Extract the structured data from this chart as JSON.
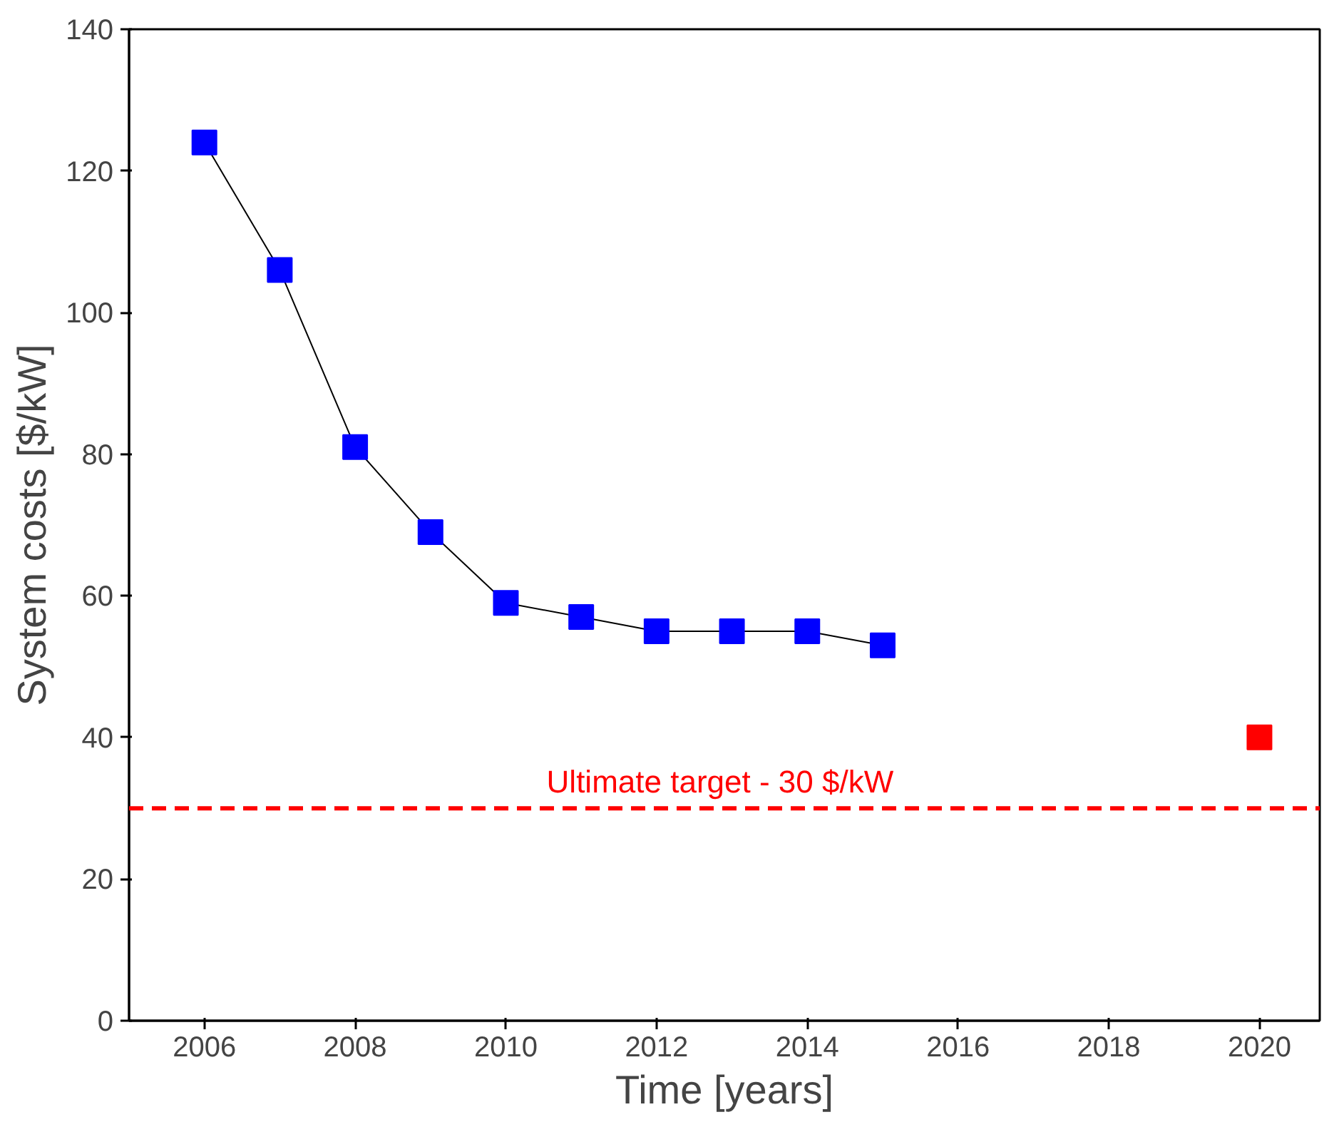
{
  "chart_data": {
    "type": "line",
    "xlabel": "Time [years]",
    "ylabel": "System costs [$/kW]",
    "xlim": [
      2005,
      2020.8
    ],
    "xticks": [
      2006,
      2008,
      2010,
      2012,
      2014,
      2016,
      2018,
      2020
    ],
    "ylim": [
      0,
      140
    ],
    "yticks": [
      0,
      20,
      40,
      60,
      80,
      100,
      120,
      140
    ],
    "marker": "square",
    "series": [
      {
        "color": "#0000ff",
        "x": [
          2006,
          2007,
          2008,
          2009,
          2010,
          2011,
          2012,
          2013,
          2014,
          2015
        ],
        "values": [
          124,
          106,
          81,
          69,
          59,
          57,
          55,
          55,
          55,
          53
        ]
      },
      {
        "type": "scatter",
        "color": "#ff0000",
        "x": [
          2020
        ],
        "values": [
          40
        ]
      }
    ],
    "ref_lines": [
      {
        "axis": "y",
        "value": 30,
        "label": "Ultimate target  - 30 $/kW",
        "color": "#ff0000",
        "line_style": "dashed"
      }
    ]
  }
}
